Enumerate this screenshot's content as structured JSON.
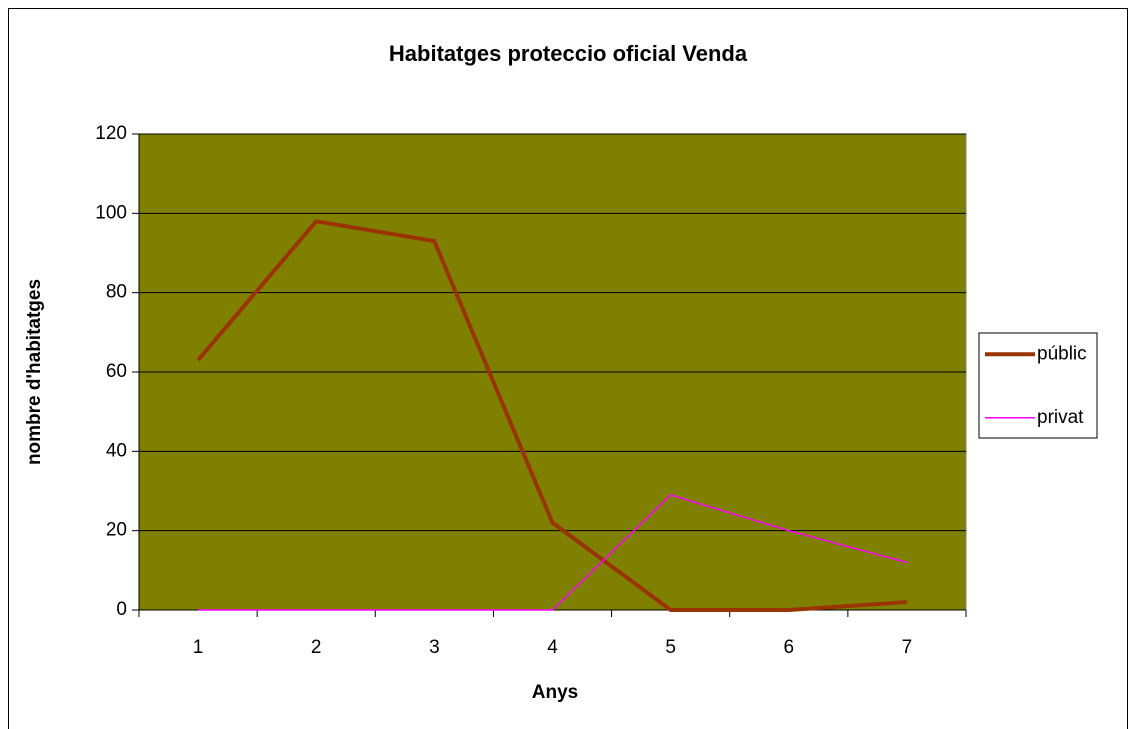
{
  "chart_data": {
    "type": "line",
    "title": "Habitatges proteccio oficial Venda",
    "x_label": "Anys",
    "y_label": "nombre d'habitatges",
    "categories": [
      "1",
      "2",
      "3",
      "4",
      "5",
      "6",
      "7"
    ],
    "series": [
      {
        "name": "públic",
        "color": "#993300",
        "width": 4,
        "values": [
          63,
          98,
          93,
          22,
          0,
          0,
          2
        ]
      },
      {
        "name": "privat",
        "color": "#ff00ff",
        "width": 1.5,
        "values": [
          0,
          0,
          0,
          0,
          29,
          20,
          12
        ]
      }
    ],
    "ylim": [
      0,
      120
    ],
    "yticks": [
      0,
      20,
      40,
      60,
      80,
      100,
      120
    ],
    "grid": true,
    "background": "#808000",
    "legend": "right"
  }
}
